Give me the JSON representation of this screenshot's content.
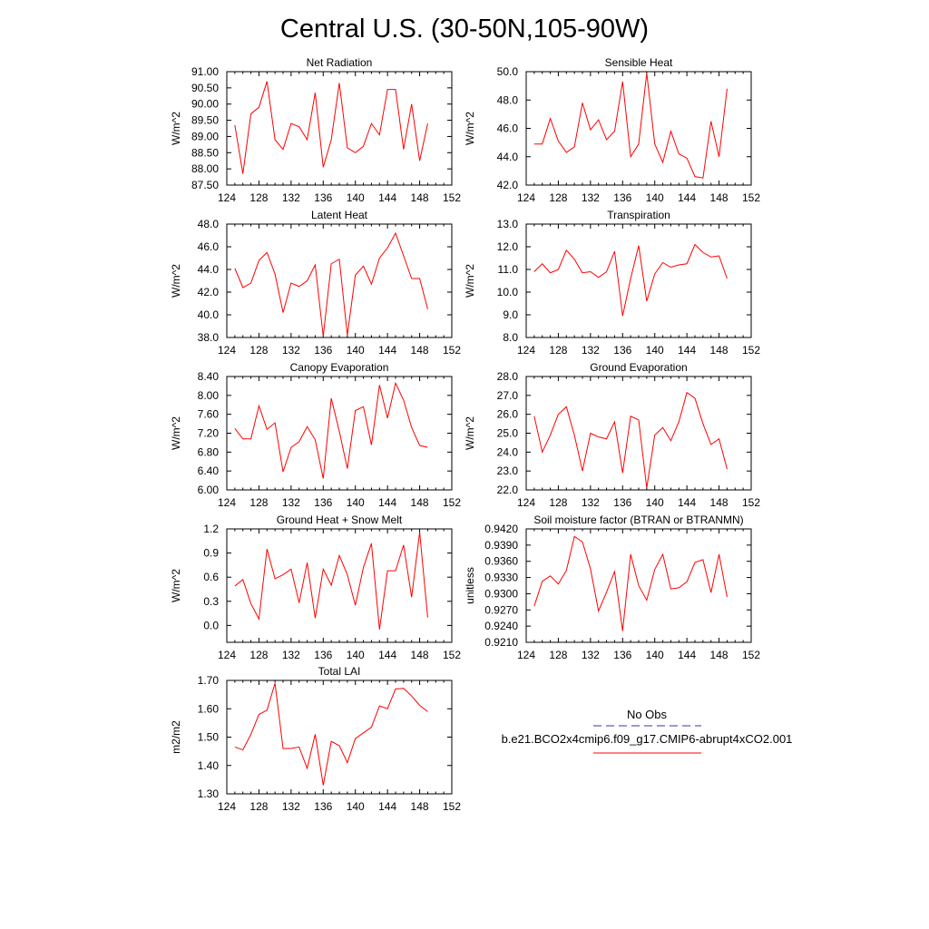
{
  "page": {
    "title": "Central U.S. (30-50N,105-90W)"
  },
  "chart_data": [
    {
      "type": "line",
      "title": "Net Radiation",
      "ylabel": "W/m^2",
      "xlim": [
        124,
        152
      ],
      "ylim": [
        87.5,
        91.0
      ],
      "xticks": [
        "124",
        "128",
        "132",
        "136",
        "140",
        "144",
        "148",
        "152"
      ],
      "yticks": [
        "87.50",
        "88.00",
        "88.50",
        "89.00",
        "89.50",
        "90.00",
        "90.50",
        "91.00"
      ],
      "series": [
        {
          "color": "#ff0000",
          "x": [
            125,
            126,
            127,
            128,
            129,
            130,
            131,
            132,
            133,
            134,
            135,
            136,
            137,
            138,
            139,
            140,
            141,
            142,
            143,
            144,
            145,
            146,
            147,
            148,
            149
          ],
          "values": [
            89.35,
            87.85,
            89.7,
            89.9,
            90.7,
            88.9,
            88.6,
            89.4,
            89.3,
            88.9,
            90.35,
            88.05,
            88.9,
            90.65,
            88.65,
            88.5,
            88.7,
            89.4,
            89.05,
            90.45,
            90.45,
            88.6,
            90.0,
            88.25,
            89.4
          ]
        }
      ]
    },
    {
      "type": "line",
      "title": "Sensible Heat",
      "ylabel": "W/m^2",
      "xlim": [
        124,
        152
      ],
      "ylim": [
        42.0,
        50.0
      ],
      "xticks": [
        "124",
        "128",
        "132",
        "136",
        "140",
        "144",
        "148",
        "152"
      ],
      "yticks": [
        "42.0",
        "44.0",
        "46.0",
        "48.0",
        "50.0"
      ],
      "series": [
        {
          "color": "#ff0000",
          "x": [
            125,
            126,
            127,
            128,
            129,
            130,
            131,
            132,
            133,
            134,
            135,
            136,
            137,
            138,
            139,
            140,
            141,
            142,
            143,
            144,
            145,
            146,
            147,
            148,
            149
          ],
          "values": [
            44.9,
            44.9,
            46.7,
            45.1,
            44.3,
            44.7,
            47.8,
            45.9,
            46.6,
            45.2,
            45.8,
            49.3,
            44.0,
            44.9,
            49.9,
            44.9,
            43.6,
            45.8,
            44.2,
            43.9,
            42.6,
            42.5,
            46.5,
            44.0,
            48.8
          ]
        }
      ]
    },
    {
      "type": "line",
      "title": "Latent Heat",
      "ylabel": "W/m^2",
      "xlim": [
        124,
        152
      ],
      "ylim": [
        38.0,
        48.0
      ],
      "xticks": [
        "124",
        "128",
        "132",
        "136",
        "140",
        "144",
        "148",
        "152"
      ],
      "yticks": [
        "38.0",
        "40.0",
        "42.0",
        "44.0",
        "46.0",
        "48.0"
      ],
      "series": [
        {
          "color": "#ff0000",
          "x": [
            125,
            126,
            127,
            128,
            129,
            130,
            131,
            132,
            133,
            134,
            135,
            136,
            137,
            138,
            139,
            140,
            141,
            142,
            143,
            144,
            145,
            146,
            147,
            148,
            149
          ],
          "values": [
            44.1,
            42.4,
            42.8,
            44.8,
            45.5,
            43.6,
            40.2,
            42.8,
            42.5,
            43.0,
            44.4,
            38.1,
            44.5,
            44.9,
            38.2,
            43.5,
            44.3,
            42.7,
            45.0,
            45.9,
            47.2,
            45.2,
            43.2,
            43.2,
            40.5
          ]
        }
      ]
    },
    {
      "type": "line",
      "title": "Transpiration",
      "ylabel": "W/m^2",
      "xlim": [
        124,
        152
      ],
      "ylim": [
        8.0,
        13.0
      ],
      "xticks": [
        "124",
        "128",
        "132",
        "136",
        "140",
        "144",
        "148",
        "152"
      ],
      "yticks": [
        "8.0",
        "9.0",
        "10.0",
        "11.0",
        "12.0",
        "13.0"
      ],
      "series": [
        {
          "color": "#ff0000",
          "x": [
            125,
            126,
            127,
            128,
            129,
            130,
            131,
            132,
            133,
            134,
            135,
            136,
            137,
            138,
            139,
            140,
            141,
            142,
            143,
            144,
            145,
            146,
            147,
            148,
            149
          ],
          "values": [
            10.9,
            11.25,
            10.85,
            11.0,
            11.85,
            11.45,
            10.85,
            10.9,
            10.65,
            10.9,
            11.8,
            8.95,
            10.6,
            12.05,
            9.6,
            10.8,
            11.3,
            11.1,
            11.2,
            11.25,
            12.1,
            11.75,
            11.55,
            11.6,
            10.6
          ]
        }
      ]
    },
    {
      "type": "line",
      "title": "Canopy Evaporation",
      "ylabel": "W/m^2",
      "xlim": [
        124,
        152
      ],
      "ylim": [
        6.0,
        8.4
      ],
      "xticks": [
        "124",
        "128",
        "132",
        "136",
        "140",
        "144",
        "148",
        "152"
      ],
      "yticks": [
        "6.00",
        "6.40",
        "6.80",
        "7.20",
        "7.60",
        "8.00",
        "8.40"
      ],
      "series": [
        {
          "color": "#ff0000",
          "x": [
            125,
            126,
            127,
            128,
            129,
            130,
            131,
            132,
            133,
            134,
            135,
            136,
            137,
            138,
            139,
            140,
            141,
            142,
            143,
            144,
            145,
            146,
            147,
            148,
            149
          ],
          "values": [
            7.3,
            7.08,
            7.08,
            7.78,
            7.28,
            7.42,
            6.38,
            6.9,
            7.02,
            7.34,
            7.06,
            6.24,
            7.94,
            7.24,
            6.45,
            7.68,
            7.76,
            6.95,
            8.22,
            7.52,
            8.26,
            7.9,
            7.32,
            6.94,
            6.9
          ]
        }
      ]
    },
    {
      "type": "line",
      "title": "Ground Evaporation",
      "ylabel": "W/m^2",
      "xlim": [
        124,
        152
      ],
      "ylim": [
        22.0,
        28.0
      ],
      "xticks": [
        "124",
        "128",
        "132",
        "136",
        "140",
        "144",
        "148",
        "152"
      ],
      "yticks": [
        "22.0",
        "23.0",
        "24.0",
        "25.0",
        "26.0",
        "27.0",
        "28.0"
      ],
      "series": [
        {
          "color": "#ff0000",
          "x": [
            125,
            126,
            127,
            128,
            129,
            130,
            131,
            132,
            133,
            134,
            135,
            136,
            137,
            138,
            139,
            140,
            141,
            142,
            143,
            144,
            145,
            146,
            147,
            148,
            149
          ],
          "values": [
            25.9,
            24.0,
            24.9,
            26.0,
            26.4,
            24.9,
            23.0,
            25.0,
            24.8,
            24.7,
            25.6,
            22.9,
            25.9,
            25.7,
            22.1,
            24.9,
            25.3,
            24.6,
            25.6,
            27.15,
            26.85,
            25.5,
            24.4,
            24.7,
            23.1
          ]
        }
      ]
    },
    {
      "type": "line",
      "title": "Ground Heat + Snow Melt",
      "ylabel": "W/m^2",
      "xlim": [
        124,
        152
      ],
      "ylim": [
        -0.21,
        1.2
      ],
      "xticks": [
        "124",
        "128",
        "132",
        "136",
        "140",
        "144",
        "148",
        "152"
      ],
      "yticks": [
        "0.0",
        "0.3",
        "0.6",
        "0.9",
        "1.2"
      ],
      "series": [
        {
          "color": "#ff0000",
          "x": [
            125,
            126,
            127,
            128,
            129,
            130,
            131,
            132,
            133,
            134,
            135,
            136,
            137,
            138,
            139,
            140,
            141,
            142,
            143,
            144,
            145,
            146,
            147,
            148,
            149
          ],
          "values": [
            0.49,
            0.57,
            0.27,
            0.08,
            0.95,
            0.58,
            0.63,
            0.7,
            0.28,
            0.78,
            0.09,
            0.7,
            0.5,
            0.87,
            0.63,
            0.25,
            0.72,
            1.02,
            -0.05,
            0.68,
            0.68,
            1.0,
            0.35,
            1.16,
            0.1
          ]
        }
      ]
    },
    {
      "type": "line",
      "title": "Soil moisture factor (BTRAN or BTRANMN)",
      "ylabel": "unitless",
      "xlim": [
        124,
        152
      ],
      "ylim": [
        0.921,
        0.942
      ],
      "xticks": [
        "124",
        "128",
        "132",
        "136",
        "140",
        "144",
        "148",
        "152"
      ],
      "yticks": [
        "0.9210",
        "0.9240",
        "0.9270",
        "0.9300",
        "0.9330",
        "0.9360",
        "0.9390",
        "0.9420"
      ],
      "series": [
        {
          "color": "#ff0000",
          "x": [
            125,
            126,
            127,
            128,
            129,
            130,
            131,
            132,
            133,
            134,
            135,
            136,
            137,
            138,
            139,
            140,
            141,
            142,
            143,
            144,
            145,
            146,
            147,
            148,
            149
          ],
          "values": [
            0.9277,
            0.9323,
            0.9333,
            0.9318,
            0.9343,
            0.9406,
            0.9396,
            0.9346,
            0.9268,
            0.9303,
            0.9341,
            0.9231,
            0.9373,
            0.9315,
            0.9288,
            0.9345,
            0.9373,
            0.9309,
            0.9311,
            0.9322,
            0.9358,
            0.9363,
            0.9302,
            0.9373,
            0.9294
          ]
        }
      ]
    },
    {
      "type": "line",
      "title": "Total LAI",
      "ylabel": "m2/m2",
      "xlim": [
        124,
        152
      ],
      "ylim": [
        1.3,
        1.7
      ],
      "xticks": [
        "124",
        "128",
        "132",
        "136",
        "140",
        "144",
        "148",
        "152"
      ],
      "yticks": [
        "1.30",
        "1.40",
        "1.50",
        "1.60",
        "1.70"
      ],
      "series": [
        {
          "color": "#ff0000",
          "x": [
            125,
            126,
            127,
            128,
            129,
            130,
            131,
            132,
            133,
            134,
            135,
            136,
            137,
            138,
            139,
            140,
            141,
            142,
            143,
            144,
            145,
            146,
            147,
            148,
            149
          ],
          "values": [
            1.465,
            1.455,
            1.51,
            1.58,
            1.595,
            1.69,
            1.46,
            1.46,
            1.465,
            1.39,
            1.51,
            1.33,
            1.485,
            1.47,
            1.41,
            1.495,
            1.515,
            1.535,
            1.61,
            1.6,
            1.67,
            1.672,
            1.645,
            1.612,
            1.59
          ]
        }
      ]
    }
  ],
  "legend": {
    "items": [
      {
        "label": "No Obs",
        "color": "#3333aa",
        "dash": "dashed"
      },
      {
        "label": "b.e21.BCO2x4cmip6.f09_g17.CMIP6-abrupt4xCO2.001",
        "color": "#ff0000",
        "dash": "solid"
      }
    ]
  }
}
